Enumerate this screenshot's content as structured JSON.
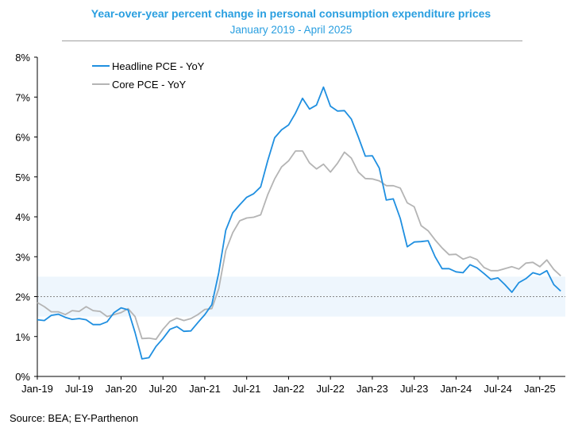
{
  "chart_data": {
    "type": "line",
    "title": "Year-over-year percent change in personal consumption expenditure prices",
    "subtitle": "January 2019 - April 2025",
    "source": "Source: BEA; EY-Parthenon",
    "xlabel": "",
    "ylabel": "",
    "ylim": [
      0,
      8
    ],
    "yticks": [
      "0%",
      "1%",
      "2%",
      "3%",
      "4%",
      "5%",
      "6%",
      "7%",
      "8%"
    ],
    "xticks": [
      "Jan-19",
      "Jul-19",
      "Jan-20",
      "Jul-20",
      "Jan-21",
      "Jul-21",
      "Jan-22",
      "Jul-22",
      "Jan-23",
      "Jul-23",
      "Jan-24",
      "Jul-24",
      "Jan-25"
    ],
    "x_start": "Jan-19",
    "x_end": "Apr-25",
    "target_line": 2,
    "target_band": [
      1.5,
      2.5
    ],
    "legend_position": "top-left",
    "grid": false,
    "series": [
      {
        "name": "Headline PCE - YoY",
        "color": "#1f8fe0",
        "values": [
          1.42,
          1.4,
          1.53,
          1.56,
          1.48,
          1.43,
          1.45,
          1.42,
          1.3,
          1.3,
          1.37,
          1.6,
          1.72,
          1.67,
          1.1,
          0.44,
          0.47,
          0.75,
          0.95,
          1.18,
          1.25,
          1.13,
          1.14,
          1.35,
          1.55,
          1.8,
          2.6,
          3.66,
          4.1,
          4.3,
          4.49,
          4.58,
          4.75,
          5.4,
          5.98,
          6.18,
          6.3,
          6.6,
          6.97,
          6.7,
          6.8,
          7.25,
          6.77,
          6.65,
          6.66,
          6.45,
          6.0,
          5.52,
          5.53,
          5.22,
          4.42,
          4.45,
          3.96,
          3.25,
          3.37,
          3.38,
          3.4,
          3.0,
          2.7,
          2.7,
          2.62,
          2.6,
          2.8,
          2.72,
          2.58,
          2.43,
          2.47,
          2.3,
          2.11,
          2.35,
          2.45,
          2.6,
          2.55,
          2.65,
          2.3,
          2.14
        ]
      },
      {
        "name": "Core PCE - YoY",
        "color": "#b4b4b4",
        "values": [
          1.85,
          1.75,
          1.62,
          1.62,
          1.55,
          1.65,
          1.63,
          1.75,
          1.65,
          1.63,
          1.5,
          1.55,
          1.6,
          1.7,
          1.5,
          0.95,
          0.96,
          0.93,
          1.18,
          1.38,
          1.46,
          1.4,
          1.45,
          1.55,
          1.68,
          1.7,
          2.2,
          3.15,
          3.6,
          3.9,
          3.97,
          3.99,
          4.05,
          4.55,
          4.95,
          5.25,
          5.4,
          5.65,
          5.65,
          5.35,
          5.2,
          5.32,
          5.12,
          5.34,
          5.62,
          5.47,
          5.12,
          4.96,
          4.95,
          4.9,
          4.78,
          4.78,
          4.72,
          4.35,
          4.25,
          3.78,
          3.65,
          3.42,
          3.22,
          3.05,
          3.06,
          2.94,
          3.0,
          2.93,
          2.73,
          2.65,
          2.65,
          2.7,
          2.75,
          2.69,
          2.84,
          2.86,
          2.75,
          2.92,
          2.68,
          2.52
        ]
      }
    ]
  }
}
